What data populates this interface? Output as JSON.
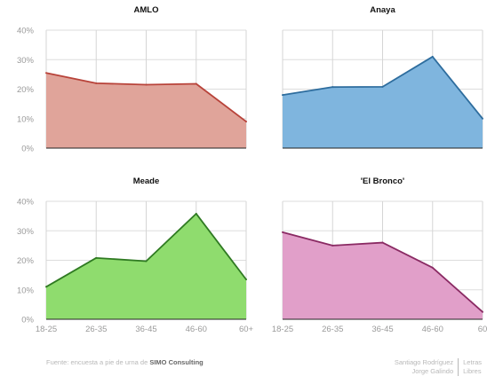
{
  "chart_data": [
    {
      "type": "area",
      "title": "AMLO",
      "categories": [
        "18-25",
        "26-35",
        "36-45",
        "46-60",
        "60+"
      ],
      "values": [
        25.5,
        22,
        21.5,
        21.8,
        9
      ],
      "ylim": [
        0,
        40
      ],
      "yticks": [
        "0%",
        "10%",
        "20%",
        "30%",
        "40%"
      ],
      "show_x_tick_labels": false,
      "show_y_tick_labels": true,
      "fill_color": "#e0a49a",
      "line_color": "#b8433a"
    },
    {
      "type": "area",
      "title": "Anaya",
      "categories": [
        "18-25",
        "26-35",
        "36-45",
        "46-60",
        "60"
      ],
      "values": [
        18,
        20.7,
        20.8,
        31,
        10
      ],
      "ylim": [
        0,
        40
      ],
      "yticks": [
        "0%",
        "10%",
        "20%",
        "30%",
        "40%"
      ],
      "show_x_tick_labels": false,
      "show_y_tick_labels": false,
      "fill_color": "#7fb5de",
      "line_color": "#2e6d9e"
    },
    {
      "type": "area",
      "title": "Meade",
      "categories": [
        "18-25",
        "26-35",
        "36-45",
        "46-60",
        "60+"
      ],
      "values": [
        11,
        20.8,
        19.7,
        35.8,
        13.5
      ],
      "ylim": [
        0,
        40
      ],
      "yticks": [
        "0%",
        "10%",
        "20%",
        "30%",
        "40%"
      ],
      "show_x_tick_labels": true,
      "show_y_tick_labels": true,
      "fill_color": "#8fdc6e",
      "line_color": "#2f7a22"
    },
    {
      "type": "area",
      "title": "'El Bronco'",
      "categories": [
        "18-25",
        "26-35",
        "36-45",
        "46-60",
        "60"
      ],
      "values": [
        29.5,
        25,
        26,
        17.5,
        2.5
      ],
      "ylim": [
        0,
        40
      ],
      "yticks": [
        "0%",
        "10%",
        "20%",
        "30%",
        "40%"
      ],
      "show_x_tick_labels": true,
      "show_y_tick_labels": false,
      "fill_color": "#e19fc9",
      "line_color": "#8a2a63"
    }
  ],
  "footer": {
    "source_prefix": "Fuente: encuesta a pie de urna de ",
    "source_org": "SIMO Consulting",
    "author_1": "Santiago Rodríguez",
    "author_2": "Jorge Galindo",
    "outlet_1": "Letras",
    "outlet_2": "Libres"
  }
}
